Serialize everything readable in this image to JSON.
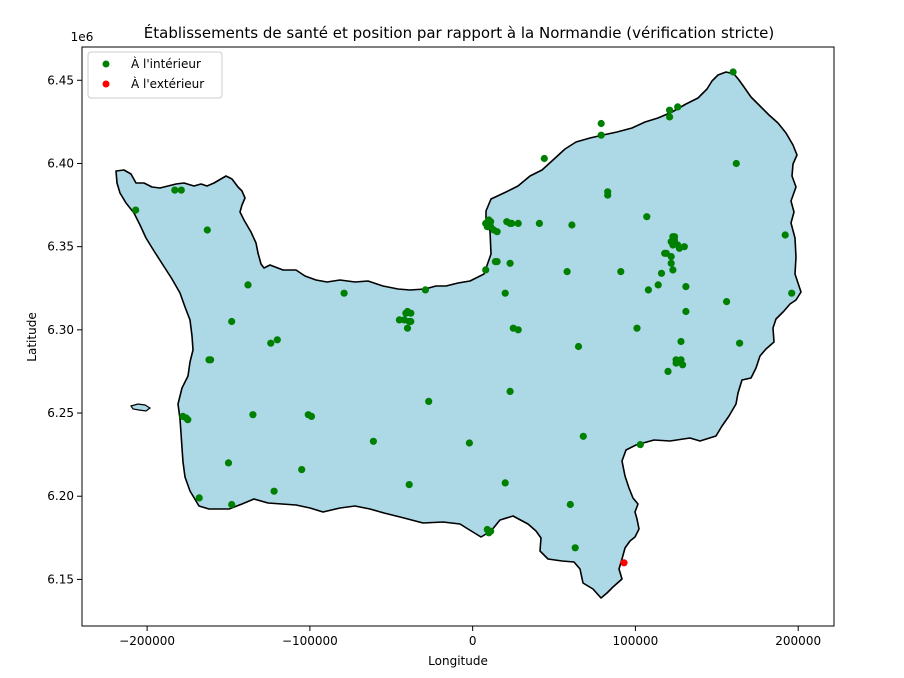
{
  "chart_data": {
    "type": "scatter",
    "title": "Établissements de santé et position par rapport à la Normandie (vérification stricte)",
    "xlabel": "Longitude",
    "ylabel": "Latitude",
    "y_offset_label": "1e6",
    "xlim": [
      -240000,
      222000
    ],
    "ylim": [
      6122000,
      6470000
    ],
    "x_ticks": [
      -200000,
      -100000,
      0,
      100000,
      200000
    ],
    "x_tick_labels": [
      "−200000",
      "−100000",
      "0",
      "100000",
      "200000"
    ],
    "y_ticks": [
      6.15,
      6.2,
      6.25,
      6.3,
      6.35,
      6.4,
      6.45
    ],
    "y_tick_labels": [
      "6.15",
      "6.20",
      "6.25",
      "6.30",
      "6.35",
      "6.40",
      "6.45"
    ],
    "legend_position": "top-left",
    "region_fill": "#add8e6",
    "series": [
      {
        "name": "À l'intérieur",
        "color": "#008000",
        "points": [
          [
            -207000,
            6372000
          ],
          [
            -183000,
            6384000
          ],
          [
            -179000,
            6384000
          ],
          [
            -163000,
            6360000
          ],
          [
            -138000,
            6327000
          ],
          [
            -148000,
            6305000
          ],
          [
            -161000,
            6282000
          ],
          [
            -162000,
            6282000
          ],
          [
            -124000,
            6292000
          ],
          [
            -120000,
            6294000
          ],
          [
            -178000,
            6248000
          ],
          [
            -176000,
            6247000
          ],
          [
            -175000,
            6246000
          ],
          [
            -135000,
            6249000
          ],
          [
            -150000,
            6220000
          ],
          [
            -168000,
            6199000
          ],
          [
            -148000,
            6195000
          ],
          [
            -122000,
            6203000
          ],
          [
            -105000,
            6216000
          ],
          [
            -101000,
            6249000
          ],
          [
            -99000,
            6248000
          ],
          [
            -79000,
            6322000
          ],
          [
            -61000,
            6233000
          ],
          [
            -39000,
            6207000
          ],
          [
            -27000,
            6257000
          ],
          [
            -29000,
            6324000
          ],
          [
            -45000,
            6306000
          ],
          [
            -42000,
            6306000
          ],
          [
            -40000,
            6311000
          ],
          [
            -41000,
            6310000
          ],
          [
            -38000,
            6310000
          ],
          [
            -39000,
            6305000
          ],
          [
            -40000,
            6301000
          ],
          [
            -38000,
            6305000
          ],
          [
            -2000,
            6232000
          ],
          [
            8000,
            6336000
          ],
          [
            8000,
            6364000
          ],
          [
            9000,
            6362000
          ],
          [
            10000,
            6366000
          ],
          [
            11000,
            6365000
          ],
          [
            11000,
            6362000
          ],
          [
            13000,
            6360000
          ],
          [
            15000,
            6359000
          ],
          [
            14000,
            6341000
          ],
          [
            15000,
            6341000
          ],
          [
            20000,
            6322000
          ],
          [
            21000,
            6365000
          ],
          [
            23000,
            6364000
          ],
          [
            24000,
            6364000
          ],
          [
            28000,
            6364000
          ],
          [
            23000,
            6340000
          ],
          [
            25000,
            6301000
          ],
          [
            28000,
            6300000
          ],
          [
            23000,
            6263000
          ],
          [
            20000,
            6208000
          ],
          [
            9000,
            6180000
          ],
          [
            10000,
            6178000
          ],
          [
            11000,
            6179000
          ],
          [
            41000,
            6364000
          ],
          [
            44000,
            6403000
          ],
          [
            58000,
            6335000
          ],
          [
            61000,
            6363000
          ],
          [
            60000,
            6195000
          ],
          [
            63000,
            6169000
          ],
          [
            65000,
            6290000
          ],
          [
            68000,
            6236000
          ],
          [
            79000,
            6424000
          ],
          [
            79000,
            6417000
          ],
          [
            83000,
            6383000
          ],
          [
            83000,
            6381000
          ],
          [
            91000,
            6335000
          ],
          [
            101000,
            6301000
          ],
          [
            103000,
            6231000
          ],
          [
            107000,
            6368000
          ],
          [
            108000,
            6324000
          ],
          [
            114000,
            6327000
          ],
          [
            116000,
            6334000
          ],
          [
            118000,
            6346000
          ],
          [
            119000,
            6346000
          ],
          [
            120000,
            6275000
          ],
          [
            121000,
            6428000
          ],
          [
            121000,
            6432000
          ],
          [
            122000,
            6353000
          ],
          [
            122000,
            6344000
          ],
          [
            122000,
            6340000
          ],
          [
            123000,
            6336000
          ],
          [
            123000,
            6351000
          ],
          [
            123000,
            6356000
          ],
          [
            124000,
            6354000
          ],
          [
            124000,
            6356000
          ],
          [
            125000,
            6282000
          ],
          [
            125000,
            6280000
          ],
          [
            126000,
            6434000
          ],
          [
            126000,
            6351000
          ],
          [
            127000,
            6349000
          ],
          [
            128000,
            6293000
          ],
          [
            128000,
            6282000
          ],
          [
            129000,
            6279000
          ],
          [
            130000,
            6350000
          ],
          [
            131000,
            6326000
          ],
          [
            131000,
            6311000
          ],
          [
            156000,
            6317000
          ],
          [
            160000,
            6455000
          ],
          [
            162000,
            6400000
          ],
          [
            164000,
            6292000
          ],
          [
            192000,
            6357000
          ],
          [
            196000,
            6322000
          ]
        ]
      },
      {
        "name": "À l'extérieur",
        "color": "#ff0000",
        "points": [
          [
            93000,
            6160000
          ]
        ]
      }
    ]
  }
}
